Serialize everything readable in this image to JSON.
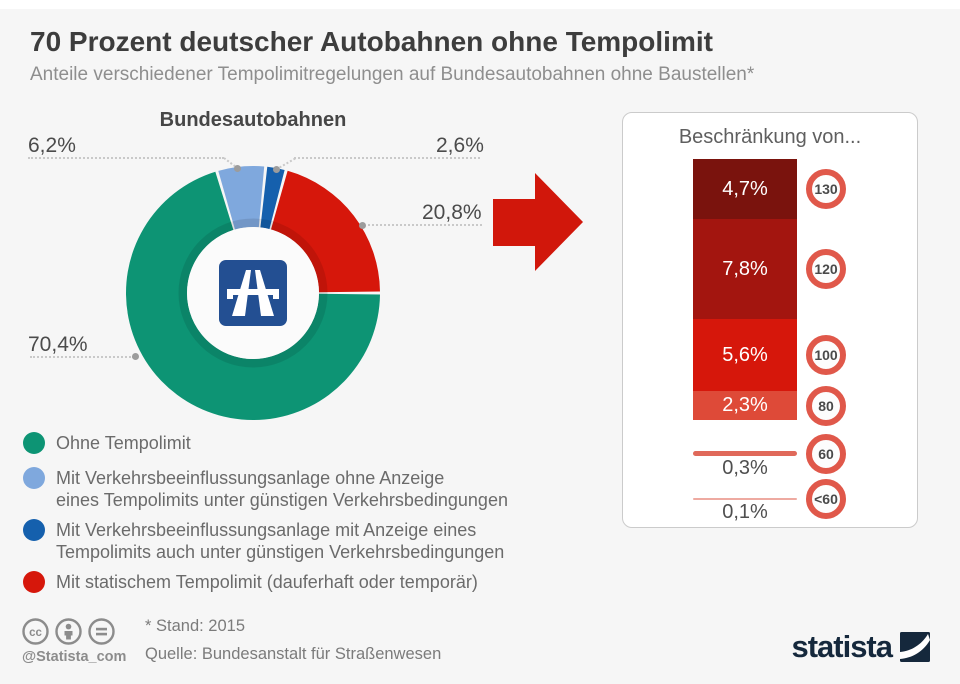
{
  "header": {
    "title": "70 Prozent deutscher Autobahnen ohne Tempolimit",
    "subtitle": "Anteile verschiedener Tempolimitregelungen auf Bundesautobahnen ohne Baustellen*"
  },
  "chart_data": [
    {
      "type": "pie",
      "subtype": "donut",
      "title": "Bundesautobahnen",
      "unit": "%",
      "slices": [
        {
          "label": "Ohne Tempolimit",
          "value": 70.4,
          "display": "70,4%",
          "color": "#0d9474"
        },
        {
          "label": "Mit Verkehrsbeeinflussungsanlage ohne Anzeige eines Tempolimits unter günstigen Verkehrsbedingungen",
          "value": 6.2,
          "display": "6,2%",
          "color": "#7fa8dd"
        },
        {
          "label": "Mit Verkehrsbeeinflussungsanlage mit Anzeige eines Tempolimits auch unter günstigen Verkehrsbedingungen",
          "value": 2.6,
          "display": "2,6%",
          "color": "#1560ad"
        },
        {
          "label": "Mit statischem Tempolimit (dauferhaft oder temporär)",
          "value": 20.8,
          "display": "20,8%",
          "color": "#d6170b"
        }
      ]
    },
    {
      "type": "bar",
      "title": "Beschränkung von...",
      "orientation": "vertical-stacked",
      "categories": [
        "130",
        "120",
        "100",
        "80",
        "60",
        "<60"
      ],
      "values": [
        4.7,
        7.8,
        5.6,
        2.3,
        0.3,
        0.1
      ],
      "displays": [
        "4,7%",
        "7,8%",
        "5,6%",
        "2,3%",
        "0,3%",
        "0,1%"
      ],
      "colors": [
        "#7a130d",
        "#a3150f",
        "#d6170b",
        "#de4a38",
        "#e0695a",
        "#eeaaa1"
      ]
    }
  ],
  "legend": {
    "items": [
      {
        "color": "#0d9474",
        "lines": [
          "Ohne Tempolimit"
        ]
      },
      {
        "color": "#7fa8dd",
        "lines": [
          "Mit Verkehrsbeeinflussungsanlage ohne Anzeige",
          "eines Tempolimits unter günstigen Verkehrsbedingungen"
        ]
      },
      {
        "color": "#1560ad",
        "lines": [
          "Mit Verkehrsbeeinflussungsanlage mit Anzeige eines",
          "Tempolimits auch unter günstigen Verkehrsbedingungen"
        ]
      },
      {
        "color": "#d6170b",
        "lines": [
          "Mit statischem Tempolimit (dauferhaft oder temporär)"
        ]
      }
    ]
  },
  "footer": {
    "handle": "@Statista_com",
    "note": "* Stand: 2015",
    "source": "Quelle: Bundesanstalt für Straßenwesen",
    "brand": "statista"
  },
  "colors": {
    "arrow": "#d1170b",
    "sign_border": "#e0584a",
    "brand": "#15283c",
    "background": "#f6f6f6",
    "autobahn_sign_blue": "#234f92"
  }
}
